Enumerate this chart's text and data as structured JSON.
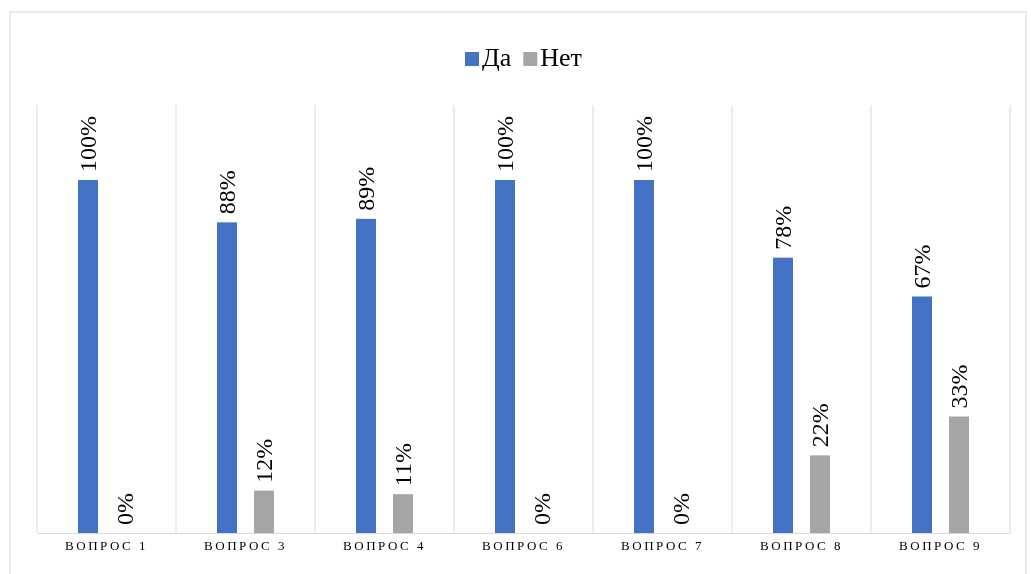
{
  "chart_data": {
    "type": "bar",
    "categories": [
      "ВОПРОС 1",
      "ВОПРОС 3",
      "ВОПРОС 4",
      "ВОПРОС 6",
      "ВОПРОС 7",
      "ВОПРОС 8",
      "ВОПРОС 9"
    ],
    "series": [
      {
        "name": "Да",
        "color": "#4472c4",
        "values": [
          100,
          88,
          89,
          100,
          100,
          78,
          67
        ],
        "value_labels": [
          "100%",
          "88%",
          "89%",
          "100%",
          "100%",
          "78%",
          "67%"
        ]
      },
      {
        "name": "Нет",
        "color": "#a5a5a5",
        "values": [
          0,
          12,
          11,
          0,
          0,
          22,
          33
        ],
        "value_labels": [
          "0%",
          "12%",
          "11%",
          "0%",
          "0%",
          "22%",
          "33%"
        ]
      }
    ],
    "tick_labels": "x",
    "grid": "x",
    "legend": "top"
  }
}
